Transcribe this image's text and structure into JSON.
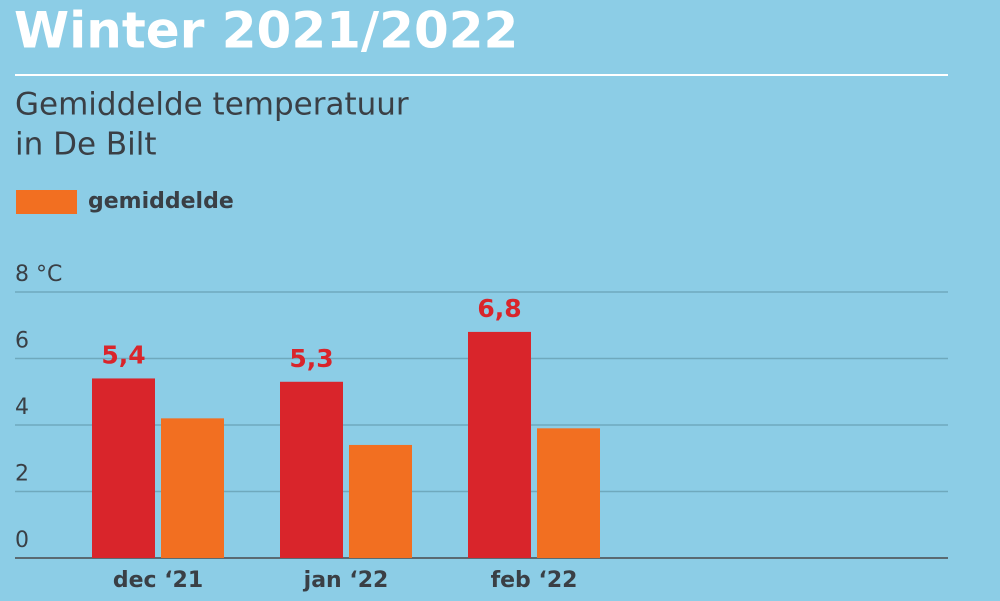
{
  "chart_data": {
    "type": "bar",
    "title": "Winter 2021/2022",
    "subtitle": [
      "Gemiddelde temperatuur",
      "in De Bilt"
    ],
    "categories": [
      "dec ‘21",
      "jan ‘22",
      "feb ‘22"
    ],
    "series": [
      {
        "color": "#d9252b",
        "values": [
          5.4,
          5.3,
          6.8
        ],
        "value_labels": [
          "5,4",
          "5,3",
          "6,8"
        ]
      },
      {
        "name": "gemiddelde",
        "color": "#f26f21",
        "values": [
          4.2,
          3.4,
          3.9
        ]
      }
    ],
    "ylim": [
      0,
      8
    ],
    "yticks": [
      0,
      2,
      4,
      6,
      {
        "value": 8,
        "label": "8 °C"
      }
    ],
    "grid": true
  }
}
